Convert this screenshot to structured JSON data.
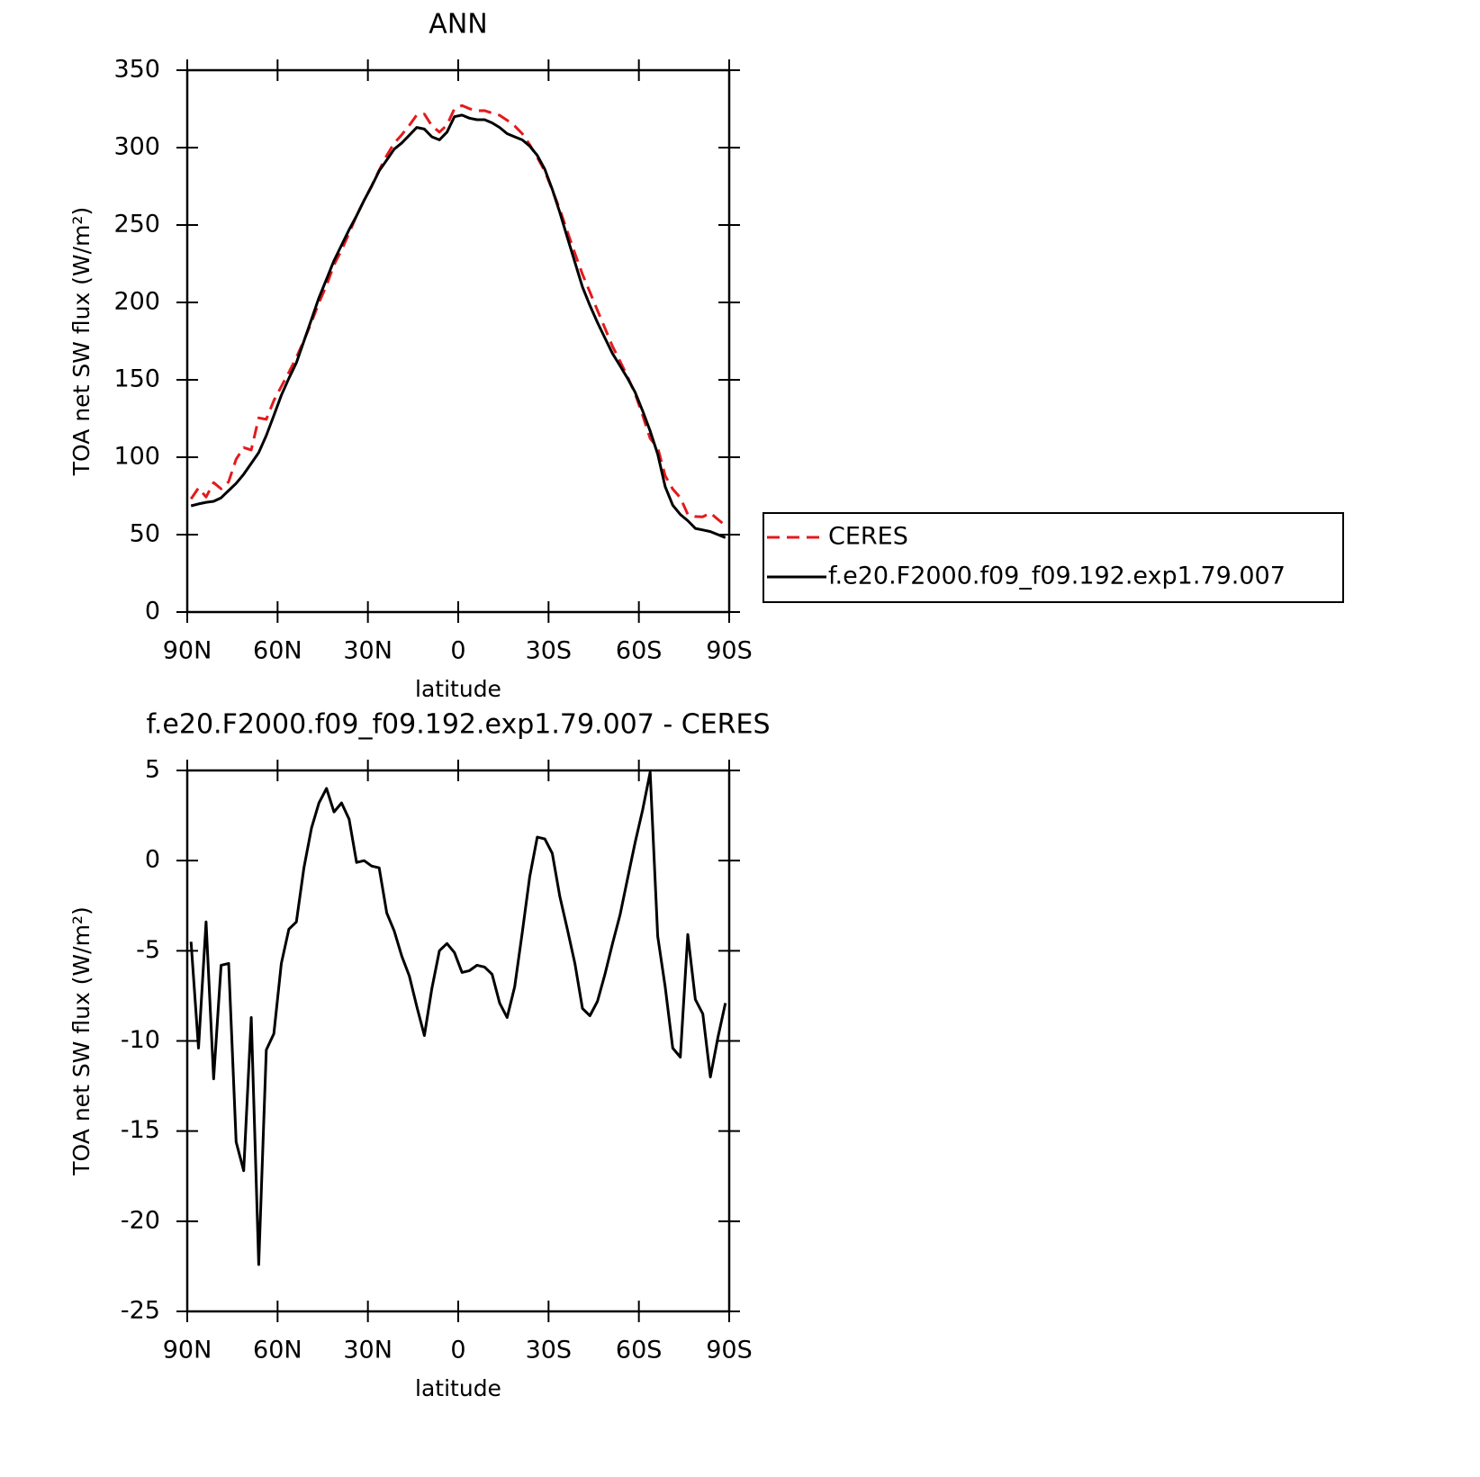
{
  "chart_data": [
    {
      "type": "line",
      "title": "ANN",
      "ylabel": "TOA net SW flux (W/m²)",
      "xlabel": "latitude",
      "x": [
        88.75,
        86.25,
        83.75,
        81.25,
        78.75,
        76.25,
        73.75,
        71.25,
        68.75,
        66.25,
        63.75,
        61.25,
        58.75,
        56.25,
        53.75,
        51.25,
        48.75,
        46.25,
        43.75,
        41.25,
        38.75,
        36.25,
        33.75,
        31.25,
        28.75,
        26.25,
        23.75,
        21.25,
        18.75,
        16.25,
        13.75,
        11.25,
        8.75,
        6.25,
        3.75,
        1.25,
        -1.25,
        -3.75,
        -6.25,
        -8.75,
        -11.25,
        -13.75,
        -16.25,
        -18.75,
        -21.25,
        -23.75,
        -26.25,
        -28.75,
        -31.25,
        -33.75,
        -36.25,
        -38.75,
        -41.25,
        -43.75,
        -46.25,
        -48.75,
        -51.25,
        -53.75,
        -56.25,
        -58.75,
        -61.25,
        -63.75,
        -66.25,
        -68.75,
        -71.25,
        -73.75,
        -76.25,
        -78.75,
        -81.25,
        -83.75,
        -86.25,
        -88.75
      ],
      "series": [
        {
          "name": "CERES",
          "color": "#e41a1c",
          "dashed": true,
          "values": [
            73.1,
            80.2,
            74.3,
            83.6,
            79.6,
            84.2,
            98.7,
            106.2,
            104.7,
            125.4,
            124.5,
            136.6,
            145.7,
            154.8,
            164.4,
            175.4,
            187.2,
            199.8,
            211,
            224.3,
            233.8,
            244.7,
            256.1,
            266,
            275.3,
            285.4,
            294.9,
            302.9,
            308.3,
            314.4,
            321.1,
            321.7,
            314.1,
            310,
            314.6,
            325.1,
            327.2,
            325.1,
            323.8,
            323.9,
            322.3,
            320.9,
            317.7,
            314,
            309,
            301.9,
            293.7,
            284.8,
            272.6,
            260,
            245.8,
            231.7,
            218.2,
            206.6,
            194.8,
            183.3,
            171.6,
            162,
            152,
            141,
            127.2,
            112.1,
            106.2,
            88,
            79.4,
            73.9,
            63.1,
            61.7,
            61.5,
            64,
            59.8,
            55.9
          ]
        },
        {
          "name": "f.e20.F2000.f09_f09.192.exp1.79.007",
          "color": "#000000",
          "dashed": false,
          "values": [
            68.6,
            69.8,
            70.9,
            71.5,
            73.8,
            78.5,
            83.1,
            89,
            96,
            103,
            114,
            127,
            140,
            151,
            161,
            175,
            189,
            203,
            215,
            227,
            237,
            247,
            256,
            266,
            275,
            285,
            292,
            299,
            303,
            308,
            313,
            312,
            307,
            305,
            310,
            320,
            321,
            319,
            318,
            318,
            316,
            313,
            309,
            307,
            305,
            301,
            295,
            286,
            273,
            258,
            242,
            226,
            210,
            198,
            187,
            177,
            167,
            159,
            151,
            142,
            130,
            117,
            102,
            81,
            69,
            63,
            59,
            54,
            53,
            52,
            50,
            48
          ]
        }
      ],
      "xlim": [
        90,
        -90
      ],
      "xticks": [
        {
          "value": 90,
          "label": "90N"
        },
        {
          "value": 60,
          "label": "60N"
        },
        {
          "value": 30,
          "label": "30N"
        },
        0,
        {
          "value": -30,
          "label": "30S"
        },
        {
          "value": -60,
          "label": "60S"
        },
        {
          "value": -90,
          "label": "90S"
        }
      ],
      "ylim": [
        0,
        350
      ],
      "yticks": [
        0,
        50,
        100,
        150,
        200,
        250,
        300,
        350
      ],
      "legend": "right"
    },
    {
      "type": "line",
      "title": "f.e20.F2000.f09_f09.192.exp1.79.007 - CERES",
      "ylabel": "TOA net SW flux (W/m²)",
      "xlabel": "latitude",
      "x": [
        88.75,
        86.25,
        83.75,
        81.25,
        78.75,
        76.25,
        73.75,
        71.25,
        68.75,
        66.25,
        63.75,
        61.25,
        58.75,
        56.25,
        53.75,
        51.25,
        48.75,
        46.25,
        43.75,
        41.25,
        38.75,
        36.25,
        33.75,
        31.25,
        28.75,
        26.25,
        23.75,
        21.25,
        18.75,
        16.25,
        13.75,
        11.25,
        8.75,
        6.25,
        3.75,
        1.25,
        -1.25,
        -3.75,
        -6.25,
        -8.75,
        -11.25,
        -13.75,
        -16.25,
        -18.75,
        -21.25,
        -23.75,
        -26.25,
        -28.75,
        -31.25,
        -33.75,
        -36.25,
        -38.75,
        -41.25,
        -43.75,
        -46.25,
        -48.75,
        -51.25,
        -53.75,
        -56.25,
        -58.75,
        -61.25,
        -63.75,
        -66.25,
        -68.75,
        -71.25,
        -73.75,
        -76.25,
        -78.75,
        -81.25,
        -83.75,
        -86.25,
        -88.75
      ],
      "color": "#000000",
      "values": [
        -4.5,
        -10.4,
        -3.4,
        -12.1,
        -5.8,
        -5.7,
        -15.6,
        -17.2,
        -8.7,
        -22.4,
        -10.5,
        -9.6,
        -5.7,
        -3.8,
        -3.4,
        -0.4,
        1.8,
        3.2,
        4.0,
        2.7,
        3.2,
        2.3,
        -0.1,
        0,
        -0.3,
        -0.4,
        -2.9,
        -3.9,
        -5.3,
        -6.4,
        -8.1,
        -9.7,
        -7.1,
        -5.0,
        -4.6,
        -5.1,
        -6.2,
        -6.1,
        -5.8,
        -5.9,
        -6.3,
        -7.9,
        -8.7,
        -7.0,
        -4.0,
        -0.9,
        1.3,
        1.2,
        0.4,
        -2.0,
        -3.8,
        -5.7,
        -8.2,
        -8.6,
        -7.8,
        -6.3,
        -4.6,
        -3.0,
        -1.0,
        1.0,
        2.8,
        4.9,
        -4.2,
        -7.0,
        -10.4,
        -10.9,
        -4.1,
        -7.7,
        -8.5,
        -12.0,
        -9.8,
        -7.9
      ],
      "xlim": [
        90,
        -90
      ],
      "xticks": [
        {
          "value": 90,
          "label": "90N"
        },
        {
          "value": 60,
          "label": "60N"
        },
        {
          "value": 30,
          "label": "30N"
        },
        0,
        {
          "value": -30,
          "label": "30S"
        },
        {
          "value": -60,
          "label": "60S"
        },
        {
          "value": -90,
          "label": "90S"
        }
      ],
      "ylim": [
        -25,
        5
      ],
      "yticks": [
        -25,
        -20,
        -15,
        -10,
        -5,
        0,
        5
      ]
    }
  ]
}
